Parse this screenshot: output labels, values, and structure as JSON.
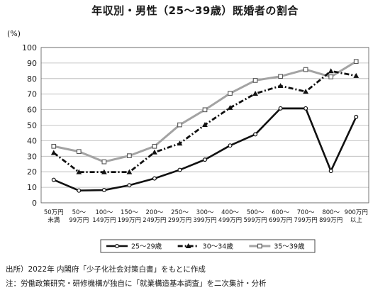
{
  "chart_data": {
    "type": "line",
    "title": "年収別・男性（25〜39歳）既婚者の割合",
    "ylabel": "(%)",
    "xlabel": "",
    "ylim": [
      0,
      100
    ],
    "yticks": [
      "0",
      "10",
      "20",
      "30",
      "40",
      "50",
      "60",
      "70",
      "80",
      "90",
      "100"
    ],
    "grid": true,
    "legend_position": "bottom",
    "categories": [
      [
        "50万円",
        "未満"
      ],
      [
        "50〜",
        "99万円"
      ],
      [
        "100〜",
        "149万円"
      ],
      [
        "150〜",
        "199万円"
      ],
      [
        "200〜",
        "249万円"
      ],
      [
        "250〜",
        "299万円"
      ],
      [
        "300〜",
        "399万円"
      ],
      [
        "400〜",
        "499万円"
      ],
      [
        "500〜",
        "599万円"
      ],
      [
        "600〜",
        "699万円"
      ],
      [
        "700〜",
        "799万円"
      ],
      [
        "800〜",
        "899万円"
      ],
      [
        "900万円",
        "以上"
      ]
    ],
    "series": [
      {
        "name": "25〜29歳",
        "style": "solid",
        "color": "#111111",
        "marker": "circle",
        "values": [
          14.8,
          7.9,
          8.2,
          11.3,
          15.7,
          21.2,
          27.8,
          36.9,
          44.1,
          60.8,
          60.8,
          20.5,
          55.3
        ]
      },
      {
        "name": "30〜34歳",
        "style": "dashdot",
        "color": "#111111",
        "marker": "triangle",
        "values": [
          32.2,
          19.8,
          19.8,
          19.8,
          32.5,
          38.2,
          50.2,
          61.2,
          70.3,
          75.3,
          71.6,
          84.8,
          81.8
        ]
      },
      {
        "name": "35〜39歳",
        "style": "solid",
        "color": "#a3a3a3",
        "marker": "square",
        "values": [
          36.4,
          33.0,
          26.4,
          30.3,
          36.4,
          50.2,
          59.9,
          70.5,
          78.8,
          81.4,
          85.8,
          81.1,
          91.0
        ]
      }
    ]
  },
  "footnotes": {
    "source": "出所）2022年 内閣府「少子化社会対策白書」をもとに作成",
    "method": "注：労働政策研究・研修機構が独自に「就業構造基本調査」を二次集計・分析"
  }
}
